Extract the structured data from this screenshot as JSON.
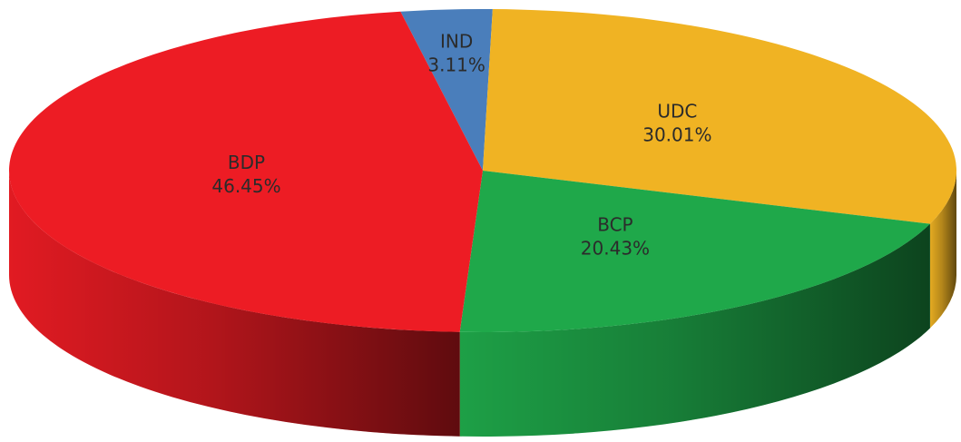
{
  "chart_data": {
    "type": "pie",
    "categories": [
      "IND",
      "UDC",
      "BCP",
      "BDP"
    ],
    "values": [
      3.11,
      30.01,
      20.43,
      46.45
    ],
    "value_labels": [
      "3.11%",
      "30.01%",
      "20.43%",
      "46.45%"
    ],
    "colors": [
      "#4a7ebb",
      "#f0b323",
      "#1fa84a",
      "#ed1c24"
    ]
  }
}
